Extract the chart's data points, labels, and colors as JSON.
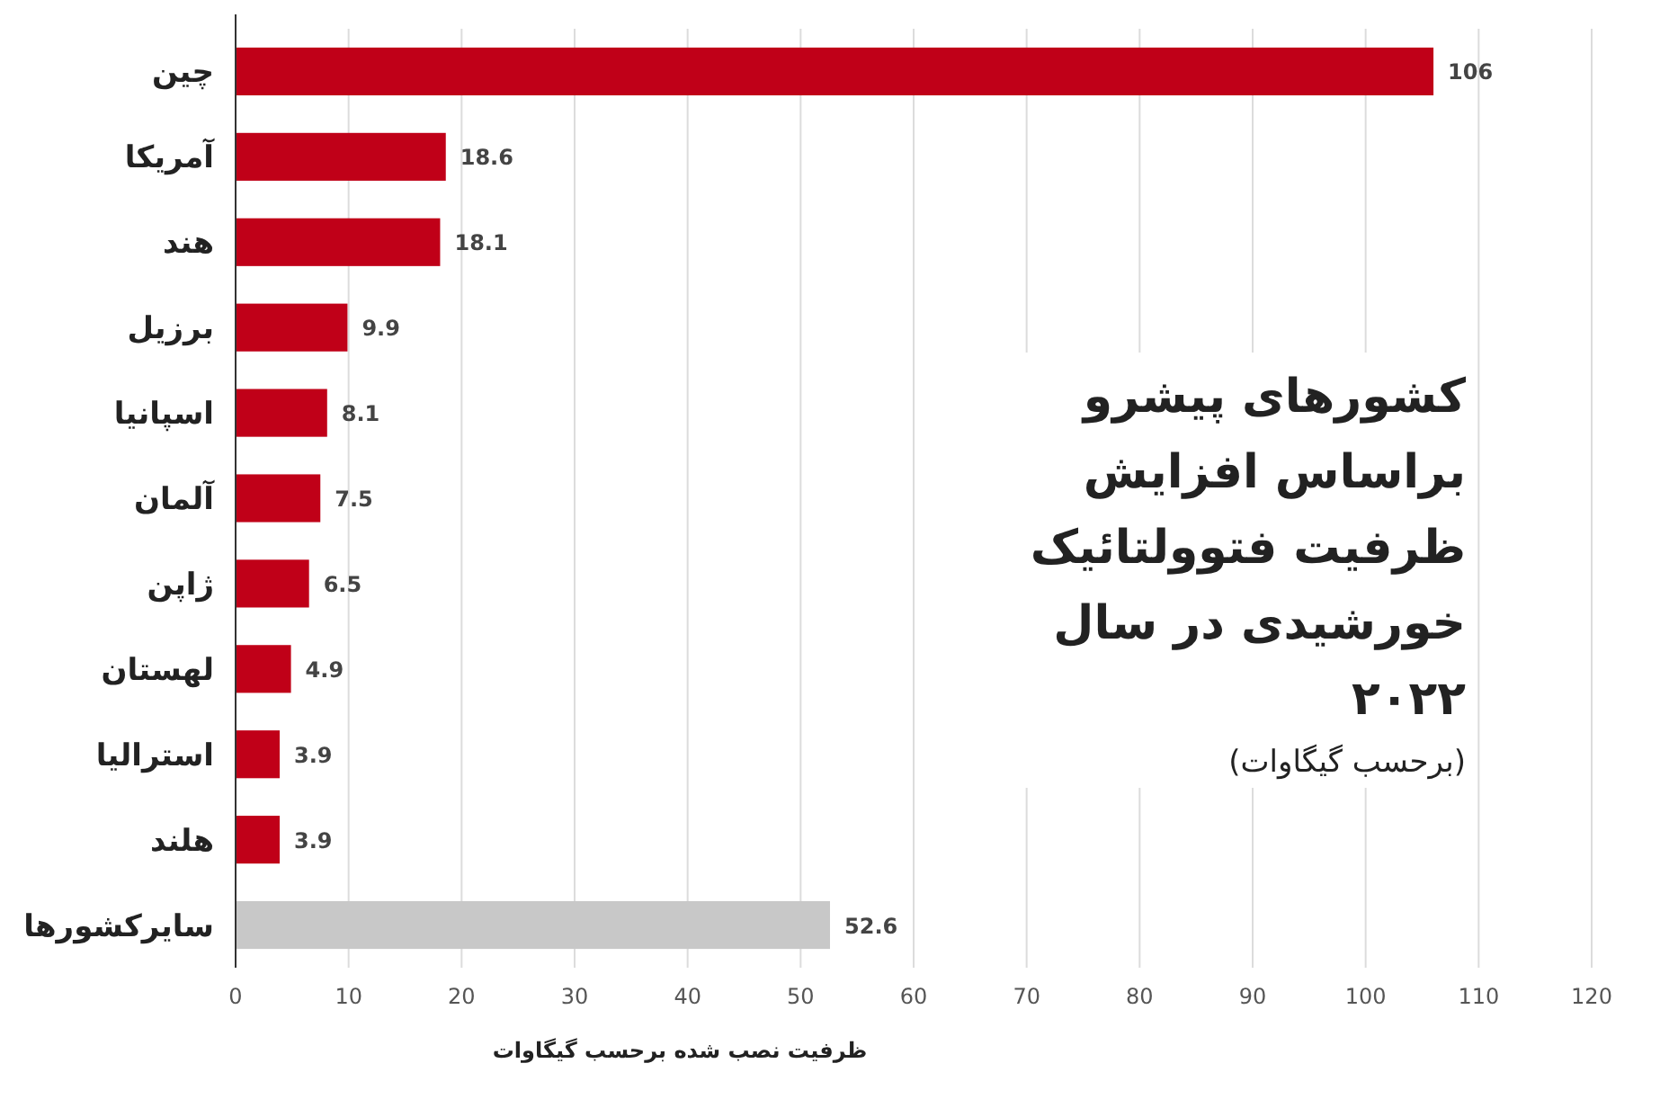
{
  "chart_data": {
    "type": "bar",
    "orientation": "horizontal",
    "title": "کشورهای پیشرو براساس افزایش ظرفیت فتوولتائیک خورشیدی در سال ۲۰۲۲",
    "subtitle": "(برحسب گیگاوات)",
    "xlabel": "ظرفیت نصب شده برحسب گیگاوات",
    "categories": [
      "چین",
      "آمریکا",
      "هند",
      "برزیل",
      "اسپانیا",
      "آلمان",
      "ژاپن",
      "لهستان",
      "استرالیا",
      "هلند",
      "سایرکشورها"
    ],
    "values": [
      106,
      18.6,
      18.1,
      9.9,
      8.1,
      7.5,
      6.5,
      4.9,
      3.9,
      3.9,
      52.6
    ],
    "colors": [
      "#c00018",
      "#c00018",
      "#c00018",
      "#c00018",
      "#c00018",
      "#c00018",
      "#c00018",
      "#c00018",
      "#c00018",
      "#c00018",
      "#c8c8c8"
    ],
    "xlim": [
      0,
      120
    ],
    "xticks": [
      0,
      10,
      20,
      30,
      40,
      50,
      60,
      70,
      80,
      90,
      100,
      110,
      120
    ],
    "grid": "x",
    "data_labels": true
  }
}
